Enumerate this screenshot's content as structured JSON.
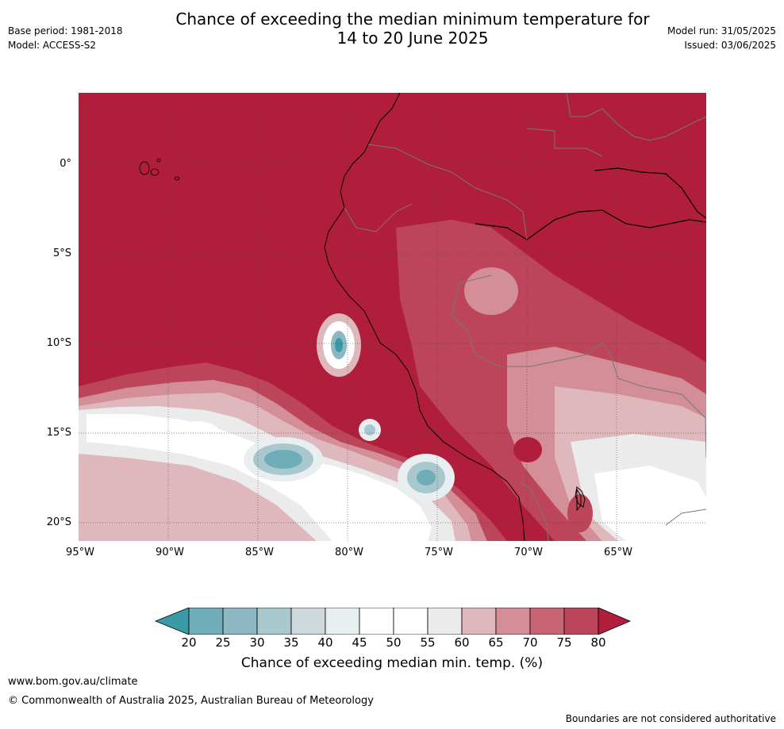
{
  "title_line1": "Chance of exceeding the median minimum temperature for",
  "title_line2": "14 to 20 June 2025",
  "base_period": "Base period: 1981-2018",
  "model": "Model: ACCESS-S2",
  "model_run": "Model run: 31/05/2025",
  "issued": "Issued: 03/06/2025",
  "lat_labels": [
    "0°",
    "5°S",
    "10°S",
    "15°S",
    "20°S"
  ],
  "lon_labels": [
    "95°W",
    "90°W",
    "85°W",
    "80°W",
    "75°W",
    "70°W",
    "65°W"
  ],
  "colorbar": {
    "ticks": [
      "20",
      "25",
      "30",
      "35",
      "40",
      "45",
      "50",
      "55",
      "60",
      "65",
      "70",
      "75",
      "80"
    ],
    "label": "Chance of exceeding median min. temp. (%)",
    "colors": [
      "#3a9aa8",
      "#6fadb9",
      "#8db8c3",
      "#a9c8cd",
      "#cfd8da",
      "#e9eff1",
      "#ffffff",
      "#ffffff",
      "#ebebeb",
      "#dfb8be",
      "#d38e97",
      "#c86473",
      "#bd4559",
      "#b01e3c"
    ]
  },
  "footer": {
    "site": "www.bom.gov.au/climate",
    "copyright": "© Commonwealth of Australia 2025, Australian Bureau of Meteorology",
    "disclaimer": "Boundaries are not considered authoritative"
  }
}
